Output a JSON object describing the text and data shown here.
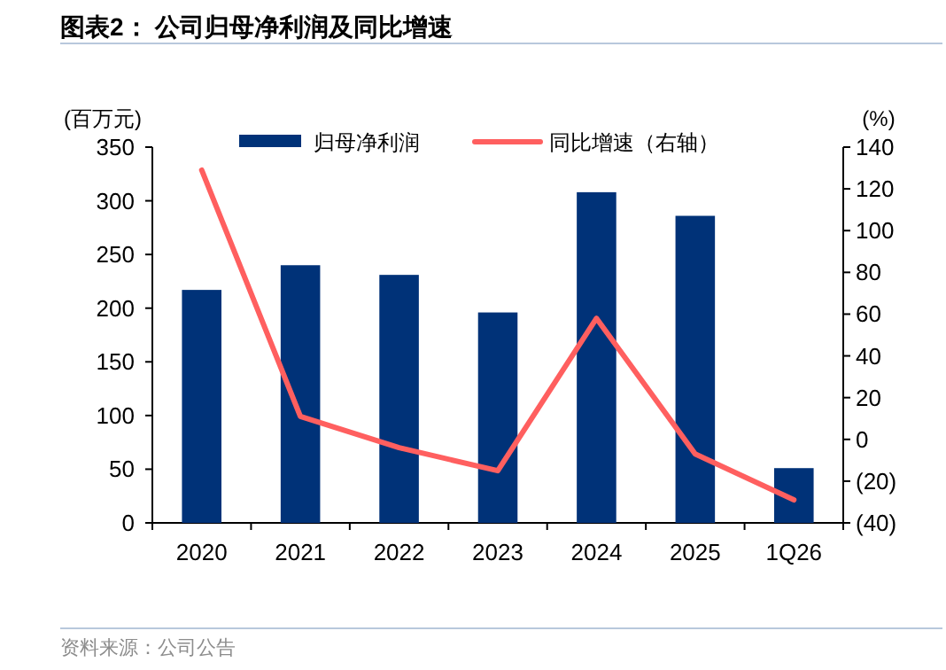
{
  "chart_data": {
    "type": "bar",
    "title": "图表2：  公司归母净利润及同比增速",
    "ylabel": "(百万元)",
    "y2label": "(%)",
    "categories": [
      "2020",
      "2021",
      "2022",
      "2023",
      "2024",
      "2025",
      "1Q26"
    ],
    "series": [
      {
        "name": "归母净利润",
        "color": "#003278",
        "values": [
          217,
          240,
          231,
          196,
          308,
          286,
          51
        ]
      },
      {
        "name": "同比增速（右轴）",
        "type": "line",
        "axis": "y2",
        "color": "#ff5f5f",
        "values": [
          129,
          11,
          -4,
          -15,
          58,
          -7,
          -29
        ]
      }
    ],
    "ylim": [
      0,
      350
    ],
    "yticks": [
      0,
      50,
      100,
      150,
      200,
      250,
      300,
      350
    ],
    "y2lim": [
      -40,
      140
    ],
    "y2ticks": [
      {
        "value": -40,
        "label": "(40)"
      },
      {
        "value": -20,
        "label": "(20)"
      },
      0,
      20,
      40,
      60,
      80,
      100,
      120,
      140
    ],
    "legend": "top",
    "grid": false,
    "marker": "none",
    "line_style": "solid",
    "annotations": [
      "资料来源：公司公告"
    ]
  }
}
